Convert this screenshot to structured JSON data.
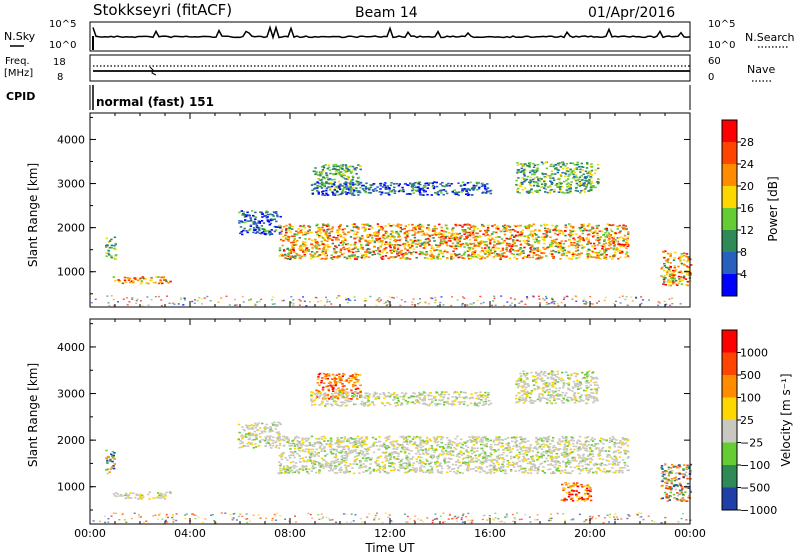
{
  "header": {
    "title": "Stokkseyri (fitACF)",
    "beam": "Beam 14",
    "date": "01/Apr/2016"
  },
  "panels": {
    "nsky": {
      "label": "N.Sky",
      "ticks_left": [
        "10^5",
        "10^0"
      ],
      "ticks_right": [
        "10^5",
        "10^0"
      ],
      "right_label": "N.Search"
    },
    "freq": {
      "label_line1": "Freq.",
      "label_line2": "[MHz]",
      "ticks_left": [
        "18",
        "8"
      ],
      "ticks_right": [
        "60",
        "0"
      ],
      "right_label": "Nave"
    },
    "cpid": {
      "label": "CPID",
      "mode": "normal (fast) 151"
    }
  },
  "chart_data": [
    {
      "type": "heatmap",
      "name": "power",
      "ylabel": "Slant Range [km]",
      "yticks": [
        "4000",
        "3000",
        "2000",
        "1000"
      ],
      "ylim": [
        200,
        4600
      ],
      "xlim": [
        0,
        24
      ],
      "colorbar": {
        "label": "Power [dB]",
        "ticks": [
          "28",
          "24",
          "20",
          "16",
          "12",
          "8",
          "4"
        ],
        "colors": [
          "#0000ff",
          "#2860c0",
          "#2e8b57",
          "#66cc33",
          "#ffd700",
          "#ff8c00",
          "#ff4500",
          "#ff0000"
        ]
      },
      "regions": [
        {
          "t0": 0.6,
          "t1": 1.0,
          "r0": 1300,
          "r1": 1800,
          "level": "mid"
        },
        {
          "t0": 0.9,
          "t1": 3.2,
          "r0": 750,
          "r1": 900,
          "level": "high"
        },
        {
          "t0": 5.9,
          "t1": 7.6,
          "r0": 1850,
          "r1": 2400,
          "level": "low"
        },
        {
          "t0": 7.5,
          "t1": 21.5,
          "r0": 1300,
          "r1": 2100,
          "level": "high"
        },
        {
          "t0": 8.9,
          "t1": 10.8,
          "r0": 2900,
          "r1": 3450,
          "level": "mid"
        },
        {
          "t0": 8.8,
          "t1": 16.0,
          "r0": 2750,
          "r1": 3050,
          "level": "low"
        },
        {
          "t0": 17.0,
          "t1": 20.3,
          "r0": 2800,
          "r1": 3500,
          "level": "mid"
        },
        {
          "t0": 22.8,
          "t1": 24.0,
          "r0": 700,
          "r1": 1500,
          "level": "high"
        }
      ]
    },
    {
      "type": "heatmap",
      "name": "velocity",
      "ylabel": "Slant Range [km]",
      "yticks": [
        "4000",
        "3000",
        "2000",
        "1000"
      ],
      "ylim": [
        200,
        4600
      ],
      "xlim": [
        0,
        24
      ],
      "xticks": [
        "00:00",
        "04:00",
        "08:00",
        "12:00",
        "16:00",
        "20:00",
        "00:00"
      ],
      "xlabel": "Time UT",
      "colorbar": {
        "label": "Velocity [m s⁻¹]",
        "ticks": [
          "1000",
          "500",
          "100",
          "25",
          "−25",
          "−100",
          "−500",
          "−1000"
        ],
        "colors": [
          "#1f3fa8",
          "#2e8b57",
          "#66cc33",
          "#c8c8c0",
          "#ffd700",
          "#ff8c00",
          "#ff4500",
          "#ff0000"
        ]
      },
      "regions": [
        {
          "t0": 0.6,
          "t1": 1.0,
          "r0": 1300,
          "r1": 1800,
          "level": "pos"
        },
        {
          "t0": 0.9,
          "t1": 3.2,
          "r0": 750,
          "r1": 900,
          "level": "grey"
        },
        {
          "t0": 5.9,
          "t1": 7.6,
          "r0": 1850,
          "r1": 2400,
          "level": "grey"
        },
        {
          "t0": 7.5,
          "t1": 21.5,
          "r0": 1300,
          "r1": 2100,
          "level": "grey"
        },
        {
          "t0": 9.0,
          "t1": 10.8,
          "r0": 2900,
          "r1": 3450,
          "level": "neg"
        },
        {
          "t0": 8.8,
          "t1": 16.0,
          "r0": 2750,
          "r1": 3050,
          "level": "grey"
        },
        {
          "t0": 17.0,
          "t1": 20.3,
          "r0": 2800,
          "r1": 3500,
          "level": "grey"
        },
        {
          "t0": 18.8,
          "t1": 20.0,
          "r0": 700,
          "r1": 1100,
          "level": "neg"
        },
        {
          "t0": 22.8,
          "t1": 24.0,
          "r0": 700,
          "r1": 1500,
          "level": "mix"
        }
      ]
    }
  ]
}
